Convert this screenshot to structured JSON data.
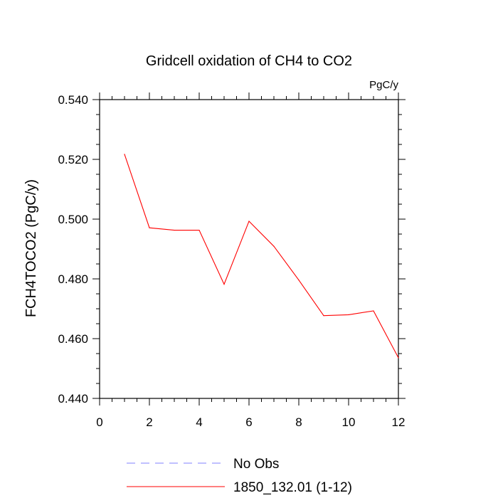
{
  "chart_data": {
    "type": "line",
    "title": "Gridcell oxidation of CH4 to CO2",
    "units_label": "PgC/y",
    "ylabel": "FCH4TOCO2  (PgC/y)",
    "xlabel": "",
    "xlim": [
      0,
      12
    ],
    "ylim": [
      0.44,
      0.54
    ],
    "x_ticks": [
      0,
      2,
      4,
      6,
      8,
      10,
      12
    ],
    "x_tick_labels": [
      "0",
      "2",
      "4",
      "6",
      "8",
      "10",
      "12"
    ],
    "y_ticks": [
      0.44,
      0.46,
      0.48,
      0.5,
      0.52,
      0.54
    ],
    "y_tick_labels": [
      "0.440",
      "0.460",
      "0.480",
      "0.500",
      "0.520",
      "0.540"
    ],
    "grid": false,
    "legend_position": "bottom",
    "series": [
      {
        "name": "No Obs",
        "color": "#8080ff",
        "dashed": true,
        "x": [],
        "values": []
      },
      {
        "name": "1850_132.01 (1-12)",
        "color": "#ff0000",
        "dashed": false,
        "x": [
          1,
          2,
          3,
          4,
          5,
          6,
          7,
          8,
          9,
          10,
          11,
          12
        ],
        "values": [
          0.5217,
          0.4971,
          0.4963,
          0.4963,
          0.4782,
          0.4993,
          0.4909,
          0.4796,
          0.4677,
          0.468,
          0.4693,
          0.4536
        ]
      }
    ]
  }
}
